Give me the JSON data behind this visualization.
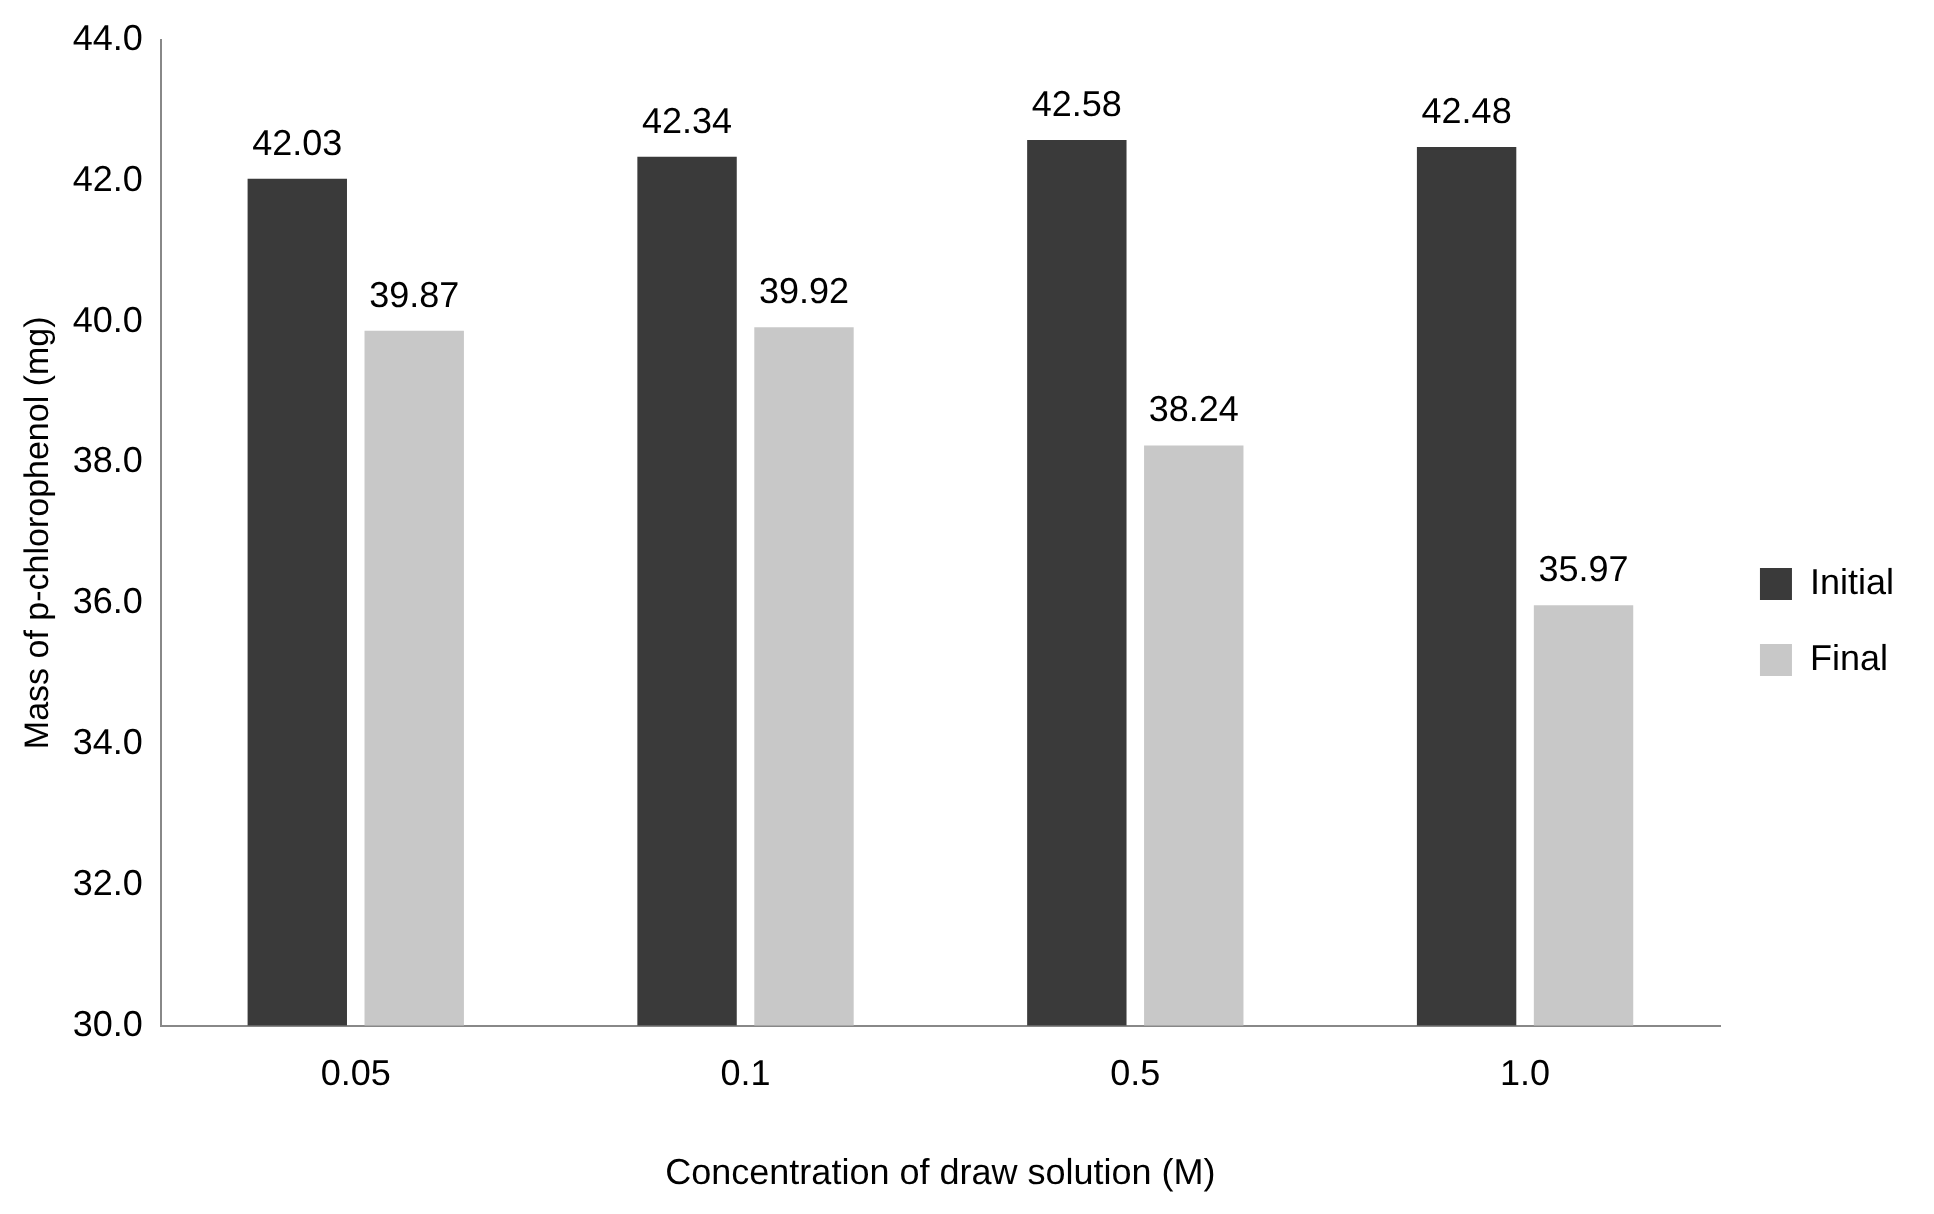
{
  "chart_data": {
    "type": "bar",
    "xlabel": "Concentration of draw solution (M)",
    "ylabel": "Mass of p-chlorophenol (mg)",
    "categories": [
      "0.05",
      "0.1",
      "0.5",
      "1.0"
    ],
    "series": [
      {
        "name": "Initial",
        "color": "#3a3a3a",
        "values": [
          42.03,
          42.34,
          42.58,
          42.48
        ]
      },
      {
        "name": "Final",
        "color": "#c8c8c8",
        "values": [
          39.87,
          39.92,
          38.24,
          35.97
        ]
      }
    ],
    "ylim": [
      30,
      44
    ],
    "yticks": [
      {
        "value": 30,
        "label": "30.0"
      },
      {
        "value": 32,
        "label": "32.0"
      },
      {
        "value": 34,
        "label": "34.0"
      },
      {
        "value": 36,
        "label": "36.0"
      },
      {
        "value": 38,
        "label": "38.0"
      },
      {
        "value": 40,
        "label": "40.0"
      },
      {
        "value": 42,
        "label": "42.0"
      },
      {
        "value": 44,
        "label": "44.0"
      }
    ],
    "grid": false,
    "legend": "right",
    "data_labels": true
  }
}
